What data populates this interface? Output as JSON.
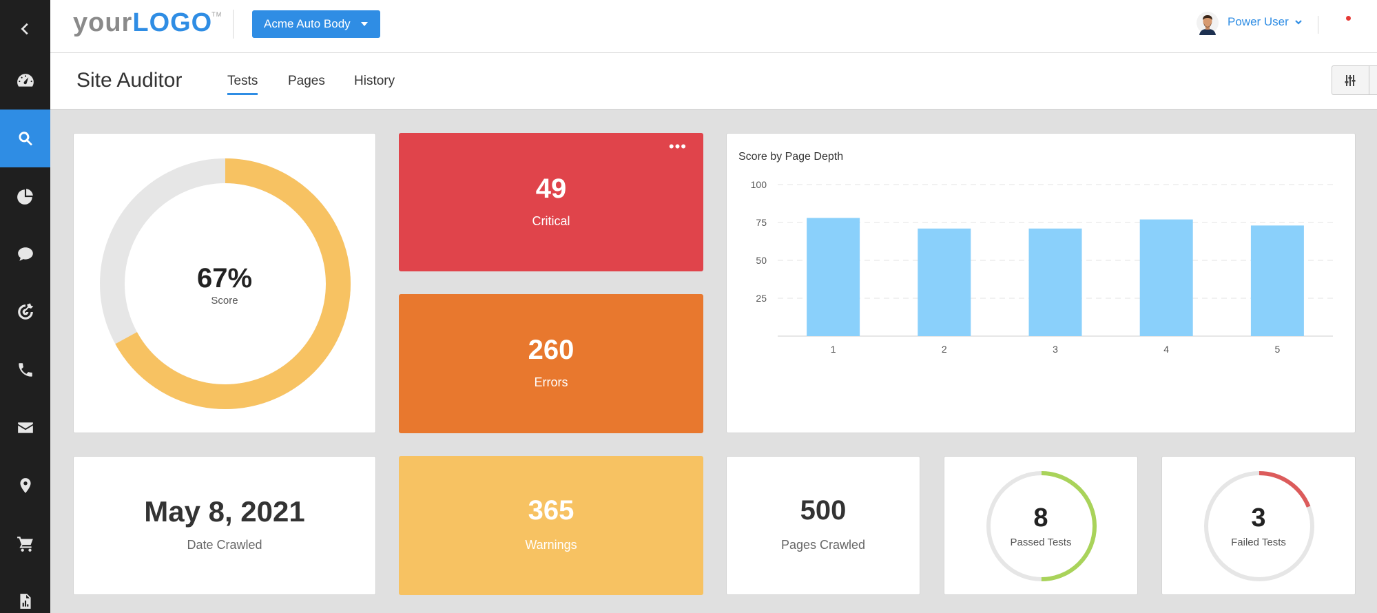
{
  "logo": {
    "part1": "your",
    "part2": "LOGO",
    "tm": "TM"
  },
  "header": {
    "account": "Acme Auto Body",
    "user": "Power User"
  },
  "sidebar": {
    "items": [
      {
        "icon": "back-icon"
      },
      {
        "icon": "dashboard-icon"
      },
      {
        "icon": "search-icon",
        "active": true
      },
      {
        "icon": "pie-chart-icon"
      },
      {
        "icon": "chat-icon"
      },
      {
        "icon": "target-icon"
      },
      {
        "icon": "phone-icon"
      },
      {
        "icon": "mail-icon"
      },
      {
        "icon": "location-icon"
      },
      {
        "icon": "cart-icon"
      },
      {
        "icon": "report-icon"
      }
    ]
  },
  "page": {
    "title": "Site Auditor",
    "tabs": [
      {
        "label": "Tests",
        "active": true
      },
      {
        "label": "Pages"
      },
      {
        "label": "History"
      }
    ]
  },
  "score": {
    "value": "67%",
    "label": "Score",
    "fraction": 0.67
  },
  "critical": {
    "value": "49",
    "label": "Critical",
    "menu": "•••"
  },
  "errors": {
    "value": "260",
    "label": "Errors"
  },
  "warnings": {
    "value": "365",
    "label": "Warnings"
  },
  "date_crawled": {
    "value": "May 8, 2021",
    "label": "Date Crawled"
  },
  "pages_crawled": {
    "value": "500",
    "label": "Pages Crawled"
  },
  "passed_tests": {
    "value": "8",
    "label": "Passed Tests",
    "fraction": 0.5
  },
  "failed_tests": {
    "value": "3",
    "label": "Failed Tests",
    "fraction": 0.19
  },
  "colors": {
    "accent": "#2f8de4",
    "critical": "#e0444b",
    "errors": "#e8782e",
    "warnings": "#f7c262",
    "bar": "#8ad0fb",
    "passed": "#a9d35a",
    "failed": "#dc5b5b"
  },
  "chart_data": {
    "type": "bar",
    "title": "Score by Page Depth",
    "categories": [
      "1",
      "2",
      "3",
      "4",
      "5"
    ],
    "values": [
      78,
      71,
      71,
      77,
      73
    ],
    "yticks": [
      25,
      50,
      75,
      100
    ],
    "ylim": [
      0,
      100
    ],
    "xlabel": "",
    "ylabel": "",
    "grid": true
  }
}
